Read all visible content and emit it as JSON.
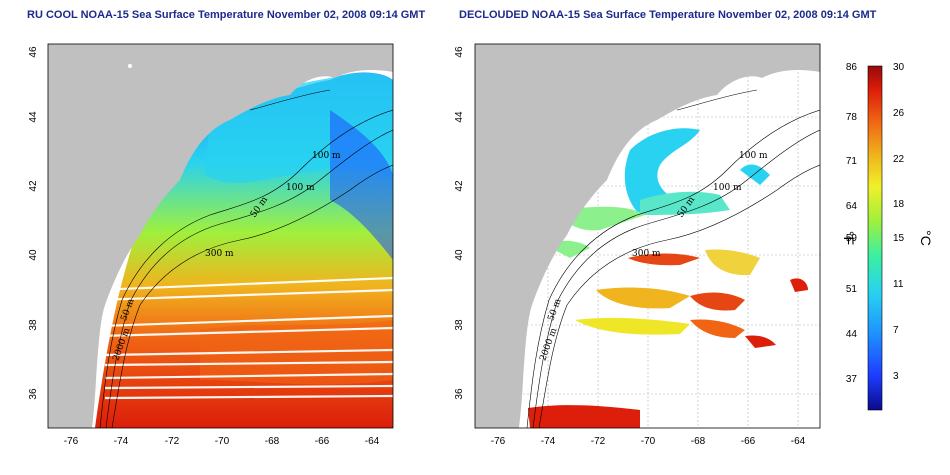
{
  "maps": [
    {
      "title": "RU COOL NOAA-15 Sea Surface Temperature November 02, 2008 09:14 GMT",
      "lat_ticks": [
        "46",
        "44",
        "42",
        "40",
        "38",
        "36"
      ],
      "lon_ticks": [
        "-76",
        "-74",
        "-72",
        "-70",
        "-68",
        "-66",
        "-64"
      ],
      "contour_labels": [
        "100 m",
        "100 m",
        "50 m",
        "300 m",
        "50 m",
        "2000 m"
      ]
    },
    {
      "title": "DECLOUDED NOAA-15 Sea Surface Temperature November 02, 2008 09:14 GMT",
      "lat_ticks": [
        "46",
        "44",
        "42",
        "40",
        "38",
        "36"
      ],
      "lon_ticks": [
        "-76",
        "-74",
        "-72",
        "-70",
        "-68",
        "-66",
        "-64"
      ],
      "contour_labels": [
        "100 m",
        "100 m",
        "50 m",
        "300 m",
        "50 m",
        "2000 m"
      ]
    }
  ],
  "colorbar": {
    "fahrenheit_ticks": [
      "86",
      "78",
      "71",
      "64",
      "59",
      "51",
      "44",
      "37"
    ],
    "celsius_ticks": [
      "30",
      "26",
      "22",
      "18",
      "15",
      "11",
      "7",
      "3"
    ],
    "fahrenheit_unit": "°F",
    "celsius_unit": "°C",
    "colors": [
      "#0a0a8c",
      "#1e3cff",
      "#1e90ff",
      "#28d2f0",
      "#3cf0a0",
      "#a0f03c",
      "#f0f028",
      "#f0b41e",
      "#f06414",
      "#dc1e0a",
      "#960a0a"
    ]
  },
  "colors": {
    "land": "#c0c0c0",
    "water_bg": "#ffffff",
    "title": "#1b2a8c"
  }
}
